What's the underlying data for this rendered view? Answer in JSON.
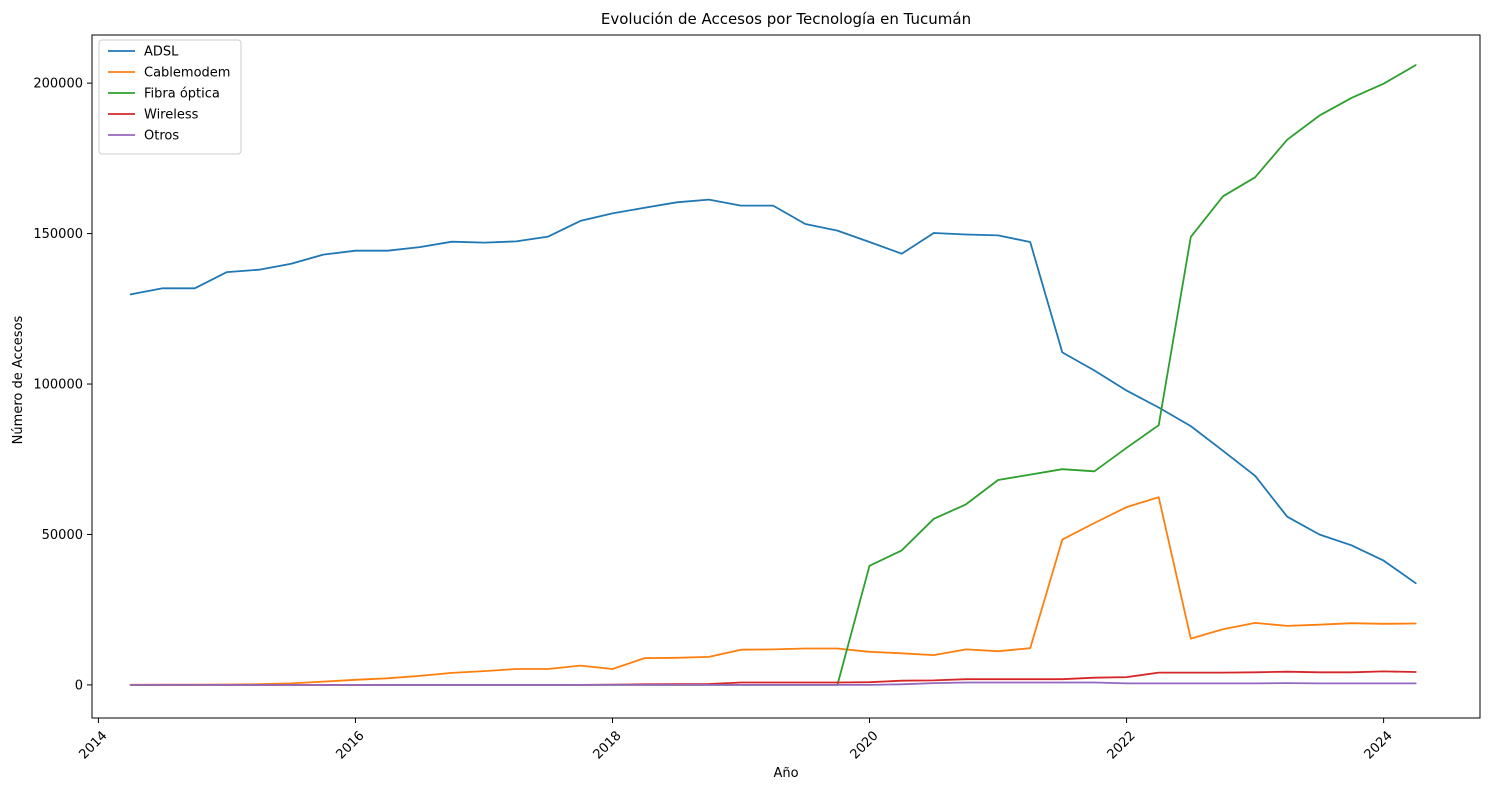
{
  "chart_data": {
    "type": "line",
    "title": "Evolución de Accesos por Tecnología en Tucumán",
    "xlabel": "Año",
    "ylabel": "Número de Accesos",
    "xlim": [
      2013.95,
      2024.75
    ],
    "ylim": [
      -11000,
      216000
    ],
    "xticks": [
      2014,
      2016,
      2018,
      2020,
      2022,
      2024
    ],
    "yticks": [
      0,
      50000,
      100000,
      150000,
      200000
    ],
    "grid": false,
    "legend_position": "top-left",
    "x": [
      2014.25,
      2014.5,
      2014.75,
      2015.0,
      2015.25,
      2015.5,
      2015.75,
      2016.0,
      2016.25,
      2016.5,
      2016.75,
      2017.0,
      2017.25,
      2017.5,
      2017.75,
      2018.0,
      2018.25,
      2018.5,
      2018.75,
      2019.0,
      2019.25,
      2019.5,
      2019.75,
      2020.0,
      2020.25,
      2020.5,
      2020.75,
      2021.0,
      2021.25,
      2021.5,
      2021.75,
      2022.0,
      2022.25,
      2022.5,
      2022.75,
      2023.0,
      2023.25,
      2023.5,
      2023.75,
      2024.0,
      2024.25
    ],
    "series": [
      {
        "name": "ADSL",
        "color": "#1f77b4",
        "values": [
          129800,
          131800,
          131800,
          137200,
          138000,
          140000,
          143000,
          144300,
          144300,
          145500,
          147300,
          147000,
          147400,
          149000,
          154200,
          156700,
          158600,
          160400,
          161300,
          159300,
          159300,
          153200,
          151000,
          147200,
          143300,
          150200,
          149700,
          149400,
          147200,
          110500,
          104500,
          97800,
          92200,
          86000,
          77800,
          69500,
          55900,
          50000,
          46400,
          41300,
          33800
        ]
      },
      {
        "name": "Cablemodem",
        "color": "#ff7f0e",
        "values": [
          50,
          80,
          100,
          150,
          250,
          500,
          1100,
          1700,
          2200,
          3000,
          4000,
          4600,
          5300,
          5300,
          6400,
          5300,
          8900,
          9000,
          9300,
          11700,
          11800,
          12100,
          12100,
          11000,
          10500,
          9900,
          11800,
          11200,
          12200,
          48300,
          53800,
          59100,
          62400,
          15400,
          18500,
          20600,
          19600,
          20000,
          20500,
          20300,
          20400
        ]
      },
      {
        "name": "Fibra óptica",
        "color": "#2ca02c",
        "values": [
          0,
          0,
          0,
          0,
          0,
          0,
          0,
          0,
          0,
          0,
          0,
          0,
          0,
          0,
          0,
          0,
          0,
          0,
          0,
          0,
          0,
          0,
          0,
          39600,
          44700,
          55200,
          60000,
          68100,
          69900,
          71700,
          71000,
          78800,
          86300,
          148900,
          162400,
          168700,
          181200,
          189200,
          195100,
          199800,
          206000
        ]
      },
      {
        "name": "Wireless",
        "color": "#d62728",
        "values": [
          0,
          0,
          0,
          0,
          0,
          0,
          0,
          0,
          0,
          0,
          0,
          0,
          0,
          0,
          0,
          100,
          200,
          250,
          300,
          800,
          800,
          800,
          800,
          900,
          1400,
          1500,
          1900,
          1900,
          1900,
          1900,
          2400,
          2600,
          4100,
          4100,
          4100,
          4200,
          4400,
          4200,
          4200,
          4500,
          4300
        ]
      },
      {
        "name": "Otros",
        "color": "#9467bd",
        "values": [
          0,
          0,
          0,
          0,
          0,
          0,
          0,
          0,
          0,
          0,
          0,
          0,
          0,
          0,
          0,
          0,
          0,
          0,
          0,
          0,
          0,
          0,
          0,
          0,
          200,
          600,
          800,
          800,
          800,
          800,
          800,
          500,
          500,
          500,
          500,
          500,
          600,
          500,
          500,
          500,
          500
        ]
      }
    ]
  }
}
